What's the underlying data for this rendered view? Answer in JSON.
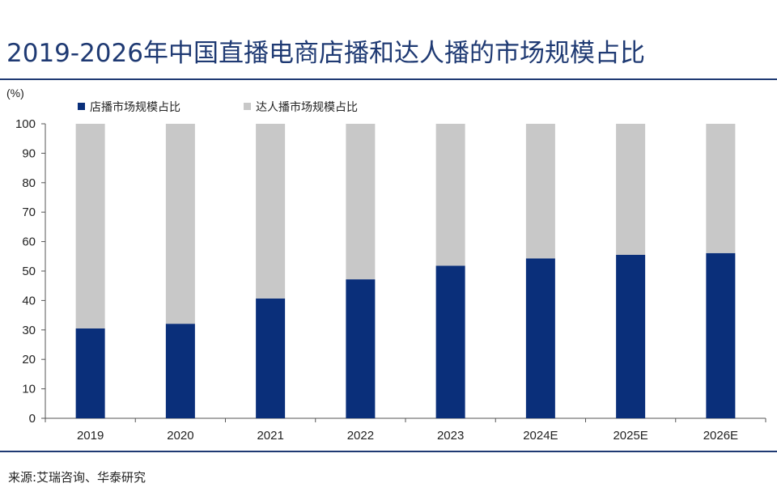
{
  "header": {
    "title": "2019-2026年中国直播电商店播和达人播的市场规模占比"
  },
  "footer": {
    "source": "来源:艾瑞咨询、华泰研究"
  },
  "colors": {
    "shop_live": "#0a2f7a",
    "influencer_live": "#c8c8c8",
    "title": "#1f3a73"
  },
  "chart_data": {
    "type": "bar",
    "stacked": true,
    "title": "2019-2026年中国直播电商店播和达人播的市场规模占比",
    "ylabel": "(%)",
    "xlabel": "",
    "ylim": [
      0,
      100
    ],
    "yticks": [
      0,
      10,
      20,
      30,
      40,
      50,
      60,
      70,
      80,
      90,
      100
    ],
    "categories": [
      "2019",
      "2020",
      "2021",
      "2022",
      "2023",
      "2024E",
      "2025E",
      "2026E"
    ],
    "series": [
      {
        "name": "店播市场规模占比",
        "color": "#0a2f7a",
        "values": [
          30.5,
          32.1,
          40.7,
          47.2,
          51.8,
          54.3,
          55.5,
          56.1
        ]
      },
      {
        "name": "达人播市场规模占比",
        "color": "#c8c8c8",
        "values": [
          69.5,
          67.9,
          59.3,
          52.8,
          48.2,
          45.7,
          44.5,
          43.9
        ]
      }
    ],
    "legend": "top-left",
    "grid": false
  }
}
